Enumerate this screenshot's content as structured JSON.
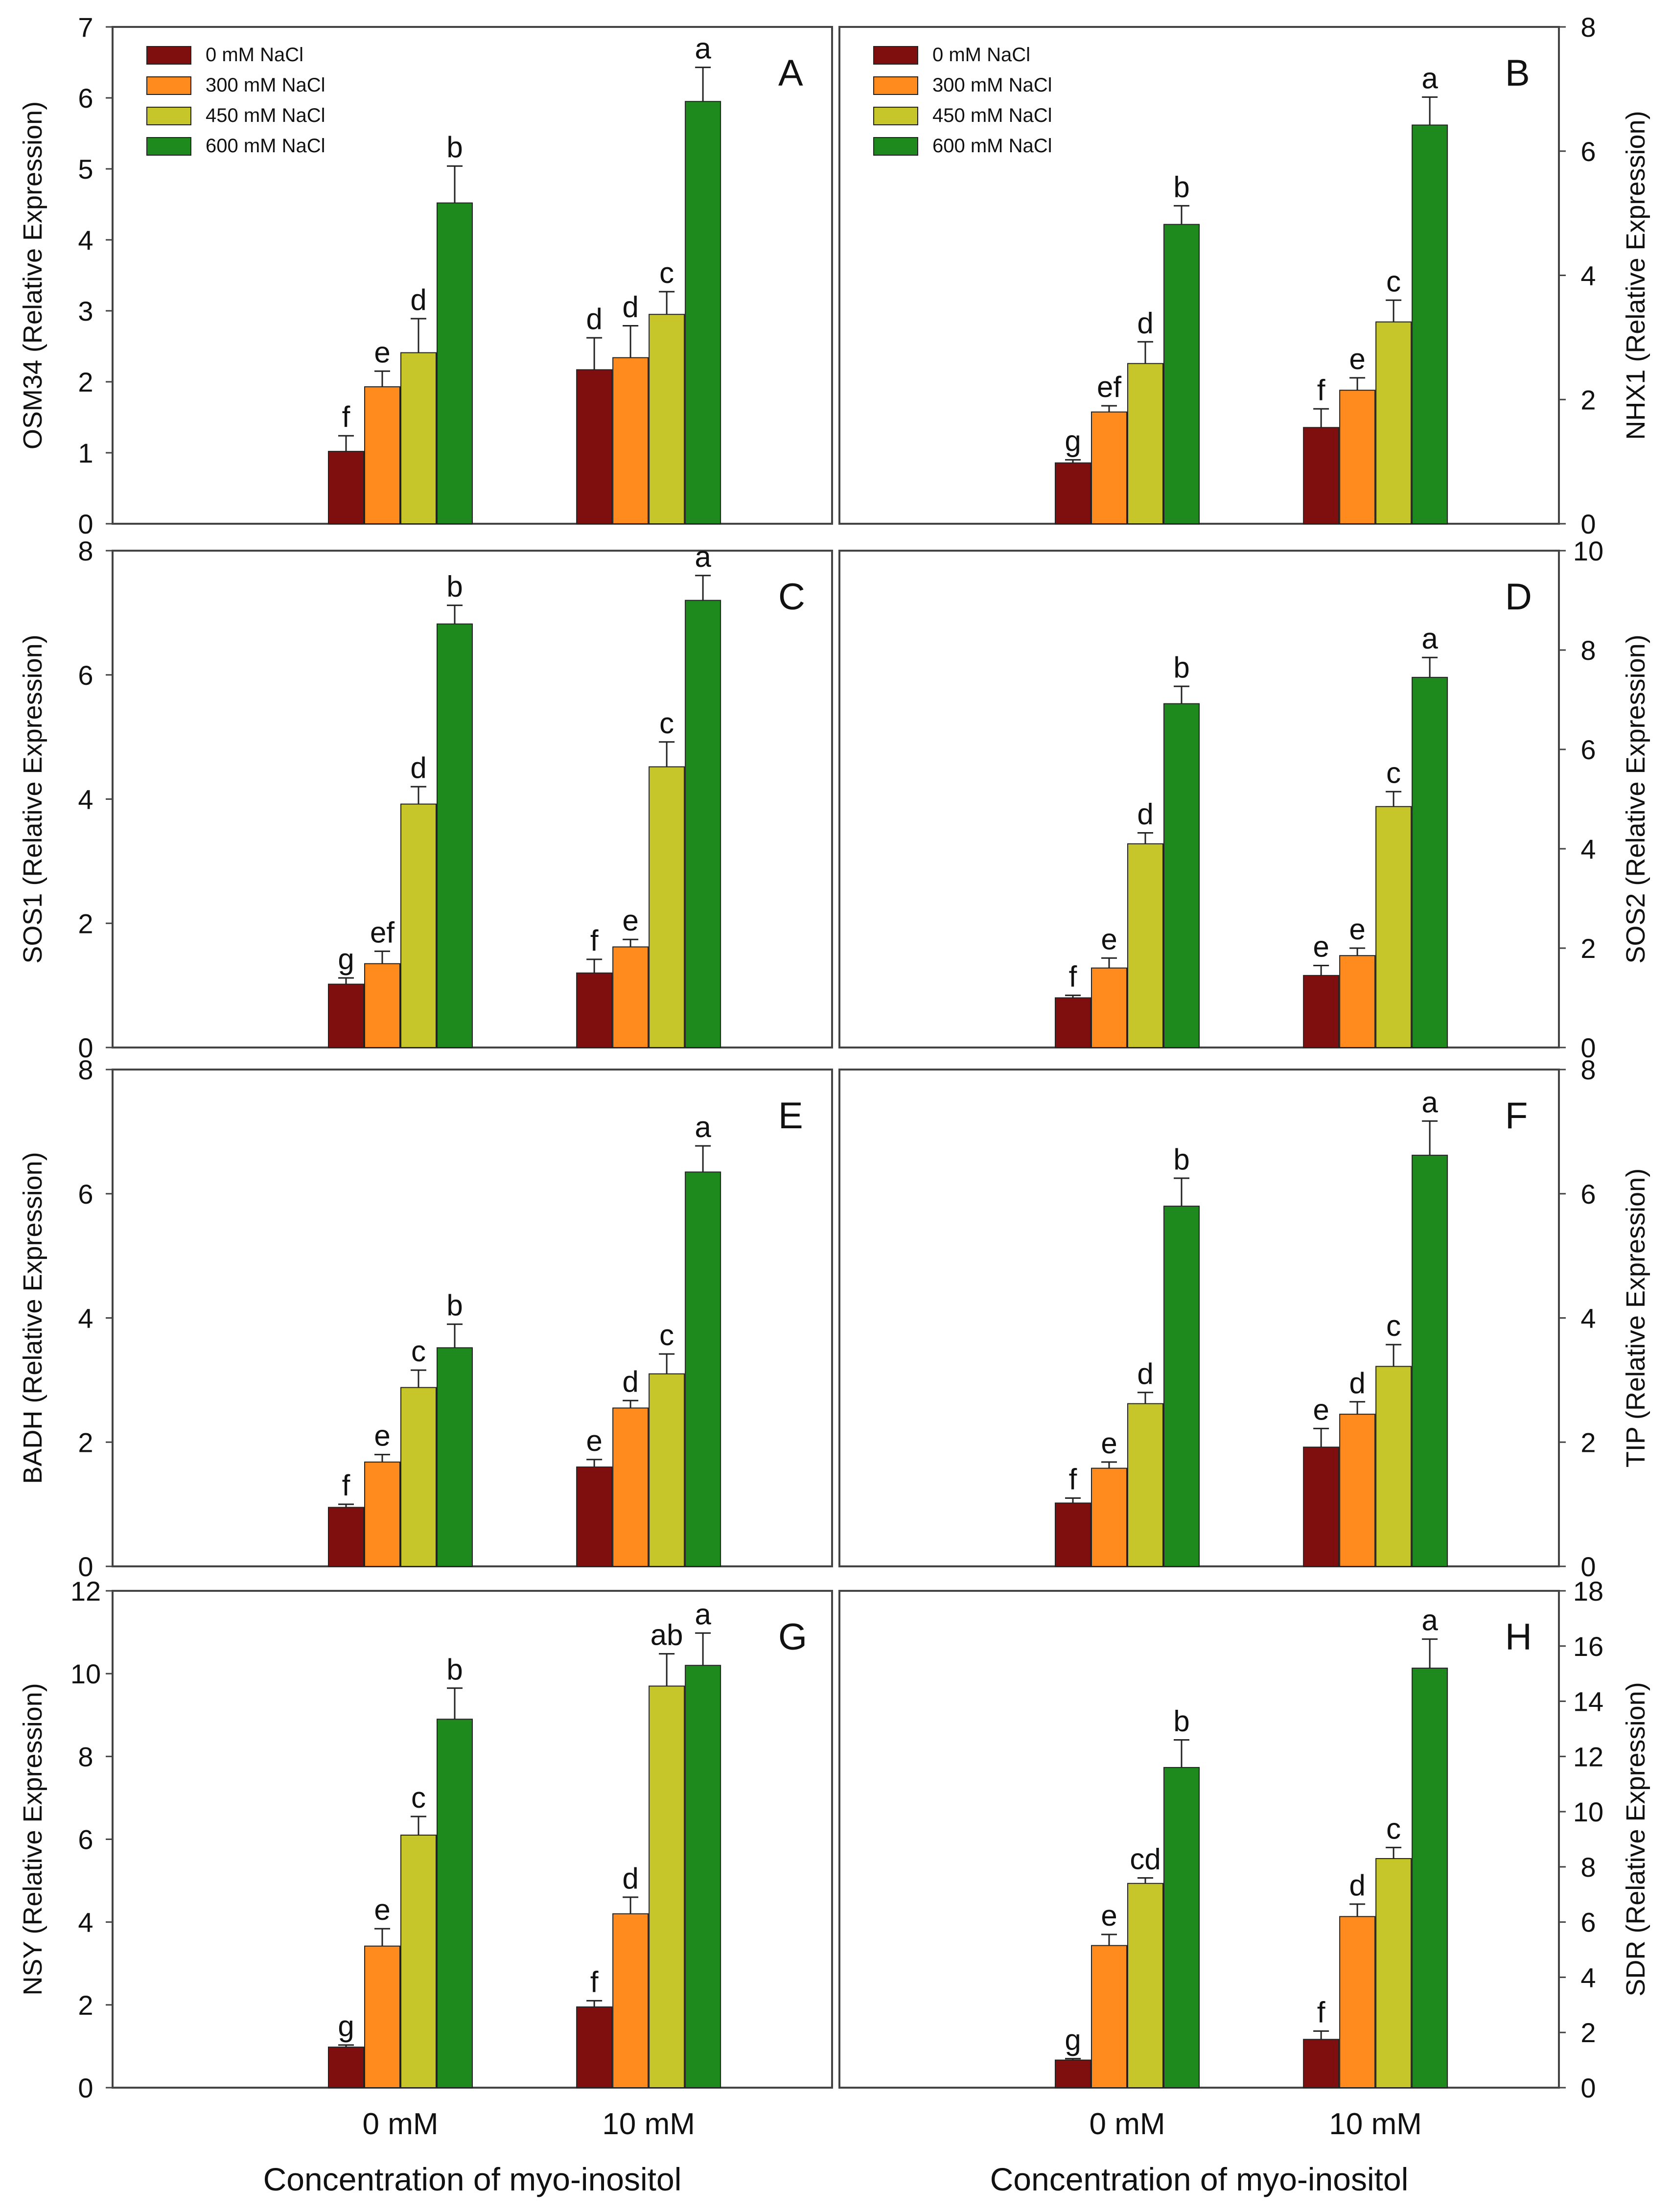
{
  "figure": {
    "x_axis_title": "Concentration of myo-inositol",
    "groups": [
      "0 mM",
      "10 mM"
    ],
    "legend": [
      "0 mM NaCl",
      "300 mM NaCl",
      "450 mM NaCl",
      "600 mM NaCl"
    ],
    "colors": [
      "#7f0f0f",
      "#ff8a1e",
      "#c6c62a",
      "#1e8a1e"
    ]
  },
  "chart_data": [
    {
      "type": "bar",
      "panel": "A",
      "title": "A",
      "ylabel": "OSM34 (Relative Expression)",
      "ylim": [
        0,
        7
      ],
      "yticks": [
        0,
        1,
        2,
        3,
        4,
        5,
        6,
        7
      ],
      "axis_side": "left",
      "xlabel": "",
      "categories": [
        "0 mM",
        "10 mM"
      ],
      "legend": true,
      "series": [
        {
          "name": "0 mM NaCl",
          "values": [
            1.02,
            2.17
          ],
          "errors": [
            0.22,
            0.45
          ],
          "letters": [
            "f",
            "d"
          ]
        },
        {
          "name": "300 mM NaCl",
          "values": [
            1.93,
            2.34
          ],
          "errors": [
            0.22,
            0.45
          ],
          "letters": [
            "e",
            "d"
          ]
        },
        {
          "name": "450 mM NaCl",
          "values": [
            2.41,
            2.95
          ],
          "errors": [
            0.48,
            0.32
          ],
          "letters": [
            "d",
            "c"
          ]
        },
        {
          "name": "600 mM NaCl",
          "values": [
            4.52,
            5.95
          ],
          "errors": [
            0.52,
            0.48
          ],
          "letters": [
            "b",
            "a"
          ]
        }
      ]
    },
    {
      "type": "bar",
      "panel": "B",
      "title": "B",
      "ylabel": "NHX1 (Relative Expression)",
      "ylim": [
        0,
        8
      ],
      "yticks": [
        0,
        2,
        4,
        6,
        8
      ],
      "axis_side": "right",
      "xlabel": "",
      "categories": [
        "0 mM",
        "10 mM"
      ],
      "legend": true,
      "series": [
        {
          "name": "0 mM NaCl",
          "values": [
            0.98,
            1.55
          ],
          "errors": [
            0.05,
            0.3
          ],
          "letters": [
            "g",
            "f"
          ]
        },
        {
          "name": "300 mM NaCl",
          "values": [
            1.8,
            2.15
          ],
          "errors": [
            0.1,
            0.2
          ],
          "letters": [
            "ef",
            "e"
          ]
        },
        {
          "name": "450 mM NaCl",
          "values": [
            2.58,
            3.25
          ],
          "errors": [
            0.35,
            0.35
          ],
          "letters": [
            "d",
            "c"
          ]
        },
        {
          "name": "600 mM NaCl",
          "values": [
            4.82,
            6.42
          ],
          "errors": [
            0.3,
            0.45
          ],
          "letters": [
            "b",
            "a"
          ]
        }
      ]
    },
    {
      "type": "bar",
      "panel": "C",
      "title": "C",
      "ylabel": "SOS1 (Relative Expression)",
      "ylim": [
        0,
        8
      ],
      "yticks": [
        0,
        2,
        4,
        6,
        8
      ],
      "axis_side": "left",
      "xlabel": "",
      "categories": [
        "0 mM",
        "10 mM"
      ],
      "legend": false,
      "series": [
        {
          "name": "0 mM NaCl",
          "values": [
            1.02,
            1.2
          ],
          "errors": [
            0.1,
            0.22
          ],
          "letters": [
            "g",
            "f"
          ]
        },
        {
          "name": "300 mM NaCl",
          "values": [
            1.35,
            1.62
          ],
          "errors": [
            0.2,
            0.12
          ],
          "letters": [
            "ef",
            "e"
          ]
        },
        {
          "name": "450 mM NaCl",
          "values": [
            3.92,
            4.52
          ],
          "errors": [
            0.28,
            0.4
          ],
          "letters": [
            "d",
            "c"
          ]
        },
        {
          "name": "600 mM NaCl",
          "values": [
            6.82,
            7.2
          ],
          "errors": [
            0.3,
            0.4
          ],
          "letters": [
            "b",
            "a"
          ]
        }
      ]
    },
    {
      "type": "bar",
      "panel": "D",
      "title": "D",
      "ylabel": "SOS2 (Relative Expression)",
      "ylim": [
        0,
        10
      ],
      "yticks": [
        0,
        2,
        4,
        6,
        8,
        10
      ],
      "axis_side": "right",
      "xlabel": "",
      "categories": [
        "0 mM",
        "10 mM"
      ],
      "legend": false,
      "series": [
        {
          "name": "0 mM NaCl",
          "values": [
            1.0,
            1.45
          ],
          "errors": [
            0.05,
            0.2
          ],
          "letters": [
            "f",
            "e"
          ]
        },
        {
          "name": "300 mM NaCl",
          "values": [
            1.6,
            1.85
          ],
          "errors": [
            0.2,
            0.15
          ],
          "letters": [
            "e",
            "e"
          ]
        },
        {
          "name": "450 mM NaCl",
          "values": [
            4.1,
            4.85
          ],
          "errors": [
            0.22,
            0.3
          ],
          "letters": [
            "d",
            "c"
          ]
        },
        {
          "name": "600 mM NaCl",
          "values": [
            6.92,
            7.45
          ],
          "errors": [
            0.35,
            0.4
          ],
          "letters": [
            "b",
            "a"
          ]
        }
      ]
    },
    {
      "type": "bar",
      "panel": "E",
      "title": "E",
      "ylabel": "BADH (Relative Expression)",
      "ylim": [
        0,
        8
      ],
      "yticks": [
        0,
        2,
        4,
        6,
        8
      ],
      "axis_side": "left",
      "xlabel": "",
      "categories": [
        "0 mM",
        "10 mM"
      ],
      "legend": false,
      "series": [
        {
          "name": "0 mM NaCl",
          "values": [
            0.95,
            1.6
          ],
          "errors": [
            0.05,
            0.12
          ],
          "letters": [
            "f",
            "e"
          ]
        },
        {
          "name": "300 mM NaCl",
          "values": [
            1.68,
            2.55
          ],
          "errors": [
            0.12,
            0.12
          ],
          "letters": [
            "e",
            "d"
          ]
        },
        {
          "name": "450 mM NaCl",
          "values": [
            2.88,
            3.1
          ],
          "errors": [
            0.28,
            0.32
          ],
          "letters": [
            "c",
            "c"
          ]
        },
        {
          "name": "600 mM NaCl",
          "values": [
            3.52,
            6.35
          ],
          "errors": [
            0.38,
            0.42
          ],
          "letters": [
            "b",
            "a"
          ]
        }
      ]
    },
    {
      "type": "bar",
      "panel": "F",
      "title": "F",
      "ylabel": "TIP (Relative Expression)",
      "ylim": [
        0,
        8
      ],
      "yticks": [
        0,
        2,
        4,
        6,
        8
      ],
      "axis_side": "right",
      "xlabel": "",
      "categories": [
        "0 mM",
        "10 mM"
      ],
      "legend": false,
      "series": [
        {
          "name": "0 mM NaCl",
          "values": [
            1.02,
            1.92
          ],
          "errors": [
            0.08,
            0.3
          ],
          "letters": [
            "f",
            "e"
          ]
        },
        {
          "name": "300 mM NaCl",
          "values": [
            1.58,
            2.45
          ],
          "errors": [
            0.1,
            0.2
          ],
          "letters": [
            "e",
            "d"
          ]
        },
        {
          "name": "450 mM NaCl",
          "values": [
            2.62,
            3.22
          ],
          "errors": [
            0.18,
            0.35
          ],
          "letters": [
            "d",
            "c"
          ]
        },
        {
          "name": "600 mM NaCl",
          "values": [
            5.8,
            6.62
          ],
          "errors": [
            0.45,
            0.55
          ],
          "letters": [
            "b",
            "a"
          ]
        }
      ]
    },
    {
      "type": "bar",
      "panel": "G",
      "title": "G",
      "ylabel": "NSY (Relative Expression)",
      "ylim": [
        0,
        12
      ],
      "yticks": [
        0,
        2,
        4,
        6,
        8,
        10,
        12
      ],
      "axis_side": "left",
      "xlabel": "Concentration of myo-inositol",
      "categories": [
        "0 mM",
        "10 mM"
      ],
      "legend": false,
      "series": [
        {
          "name": "0 mM NaCl",
          "values": [
            0.98,
            1.95
          ],
          "errors": [
            0.05,
            0.15
          ],
          "letters": [
            "g",
            "f"
          ]
        },
        {
          "name": "300 mM NaCl",
          "values": [
            3.42,
            4.2
          ],
          "errors": [
            0.42,
            0.4
          ],
          "letters": [
            "e",
            "d"
          ]
        },
        {
          "name": "450 mM NaCl",
          "values": [
            6.1,
            9.7
          ],
          "errors": [
            0.45,
            0.78
          ],
          "letters": [
            "c",
            "ab"
          ]
        },
        {
          "name": "600 mM NaCl",
          "values": [
            8.9,
            10.2
          ],
          "errors": [
            0.75,
            0.78
          ],
          "letters": [
            "b",
            "a"
          ]
        }
      ]
    },
    {
      "type": "bar",
      "panel": "H",
      "title": "H",
      "ylabel": "SDR (Relative Expression)",
      "ylim": [
        0,
        18
      ],
      "yticks": [
        0,
        2,
        4,
        6,
        8,
        10,
        12,
        14,
        16,
        18
      ],
      "axis_side": "right",
      "xlabel": "Concentration of myo-inositol",
      "categories": [
        "0 mM",
        "10 mM"
      ],
      "legend": false,
      "series": [
        {
          "name": "0 mM NaCl",
          "values": [
            1.0,
            1.75
          ],
          "errors": [
            0.05,
            0.3
          ],
          "letters": [
            "g",
            "f"
          ]
        },
        {
          "name": "300 mM NaCl",
          "values": [
            5.15,
            6.2
          ],
          "errors": [
            0.4,
            0.45
          ],
          "letters": [
            "e",
            "d"
          ]
        },
        {
          "name": "450 mM NaCl",
          "values": [
            7.4,
            8.3
          ],
          "errors": [
            0.2,
            0.4
          ],
          "letters": [
            "cd",
            "c"
          ]
        },
        {
          "name": "600 mM NaCl",
          "values": [
            11.6,
            15.2
          ],
          "errors": [
            1.0,
            1.05
          ],
          "letters": [
            "b",
            "a"
          ]
        }
      ]
    }
  ]
}
